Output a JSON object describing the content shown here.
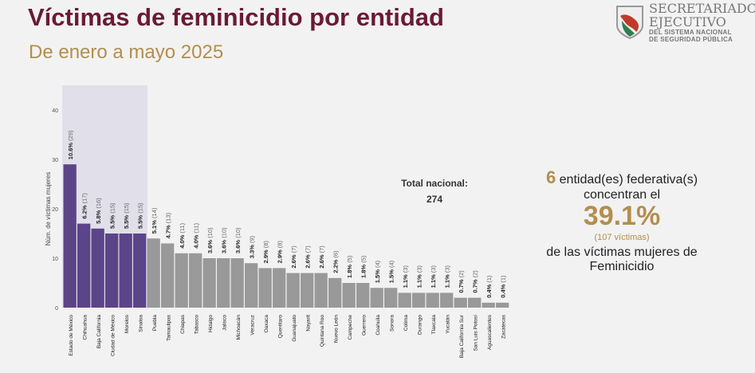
{
  "header": {
    "title": "Víctimas de feminicidio por entidad",
    "subtitle": "De enero a mayo 2025"
  },
  "logo": {
    "line1": "SECRETARIADO",
    "line2": "EJECUTIVO",
    "line3": "DEL SISTEMA NACIONAL",
    "line4": "DE SEGURIDAD PÚBLICA"
  },
  "total": {
    "label": "Total nacional:",
    "value": "274"
  },
  "summary": {
    "count": "6",
    "text1": "entidad(es) federativa(s)",
    "text2": "concentran el",
    "percent": "39.1%",
    "victims": "(107 víctimas)",
    "text3": "de las víctimas mujeres de",
    "text4": "Feminicidio"
  },
  "colors": {
    "highlight": "#5c4489",
    "other": "#999999",
    "shade": "#dcdae6"
  },
  "chart_data": {
    "type": "bar",
    "ylabel": "Núm. de víctimas mujeres",
    "ylim": [
      0,
      40
    ],
    "yticks": [
      0,
      10,
      20,
      30,
      40
    ],
    "highlighted_count": 6,
    "categories": [
      "Estado de México",
      "Chihuahua",
      "Baja California",
      "Ciudad de México",
      "Morelos",
      "Sinaloa",
      "Puebla",
      "Tamaulipas",
      "Chiapas",
      "Tabasco",
      "Hidalgo",
      "Jalisco",
      "Michoacán",
      "Veracruz",
      "Oaxaca",
      "Querétaro",
      "Guanajuato",
      "Nayarit",
      "Quintana Roo",
      "Nuevo León",
      "Campeche",
      "Guerrero",
      "Coahuila",
      "Sonora",
      "Colima",
      "Durango",
      "Tlaxcala",
      "Yucatán",
      "Baja California Sur",
      "San Luis Potosí",
      "Aguascalientes",
      "Zacatecas"
    ],
    "values": [
      29,
      17,
      16,
      15,
      15,
      15,
      14,
      13,
      11,
      11,
      10,
      10,
      10,
      9,
      8,
      8,
      7,
      7,
      7,
      6,
      5,
      5,
      4,
      4,
      3,
      3,
      3,
      3,
      2,
      2,
      1,
      1
    ],
    "percent_labels": [
      "10.6%",
      "6.2%",
      "5.8%",
      "5.5%",
      "5.5%",
      "5.5%",
      "5.1%",
      "4.7%",
      "4.0%",
      "4.0%",
      "3.6%",
      "3.6%",
      "3.6%",
      "3.3%",
      "2.9%",
      "2.9%",
      "2.6%",
      "2.6%",
      "2.6%",
      "2.2%",
      "1.8%",
      "1.8%",
      "1.5%",
      "1.5%",
      "1.1%",
      "1.1%",
      "1.1%",
      "1.1%",
      "0.7%",
      "0.7%",
      "0.4%",
      "0.4%"
    ]
  }
}
